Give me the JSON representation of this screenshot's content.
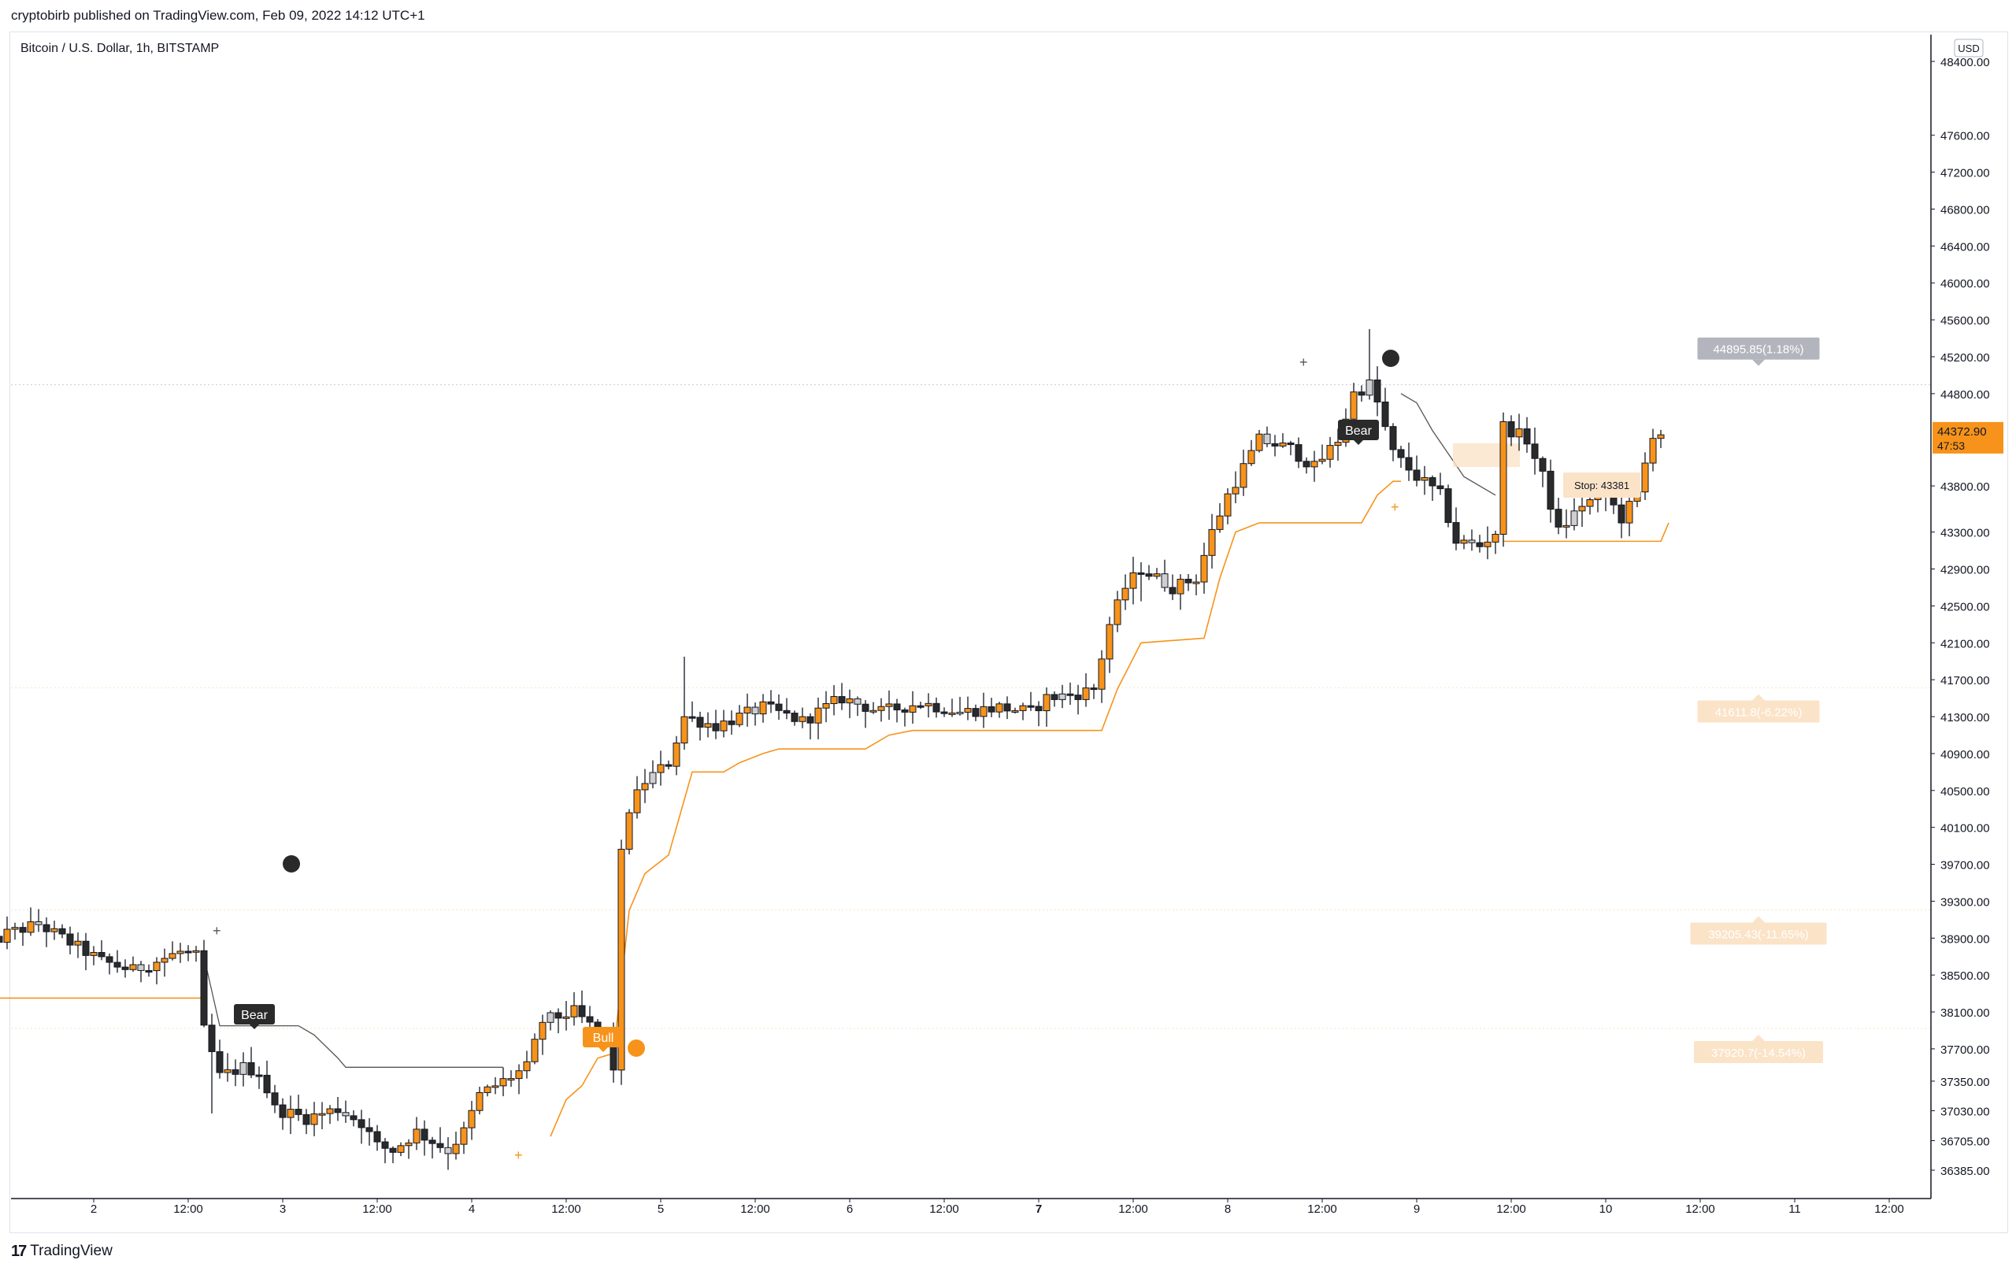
{
  "header": {
    "published": "cryptobirb published on TradingView.com, Feb 09, 2022 14:12 UTC+1"
  },
  "footer": {
    "brand": "TradingView"
  },
  "chart_data": {
    "type": "candlestick",
    "title": "Bitcoin / U.S. Dollar, 1h, BITSTAMP",
    "currency": "USD",
    "colors": {
      "up": "#f7931a",
      "down": "#2a2a2a",
      "neutral": "#cfcfcf",
      "stop_line": "#f7931a",
      "bear_line": "#555555",
      "label_bg": "#fbe3c8",
      "price_badge": "#f7931a",
      "target_gray": "#b2b5be"
    },
    "price_axis": {
      "ticks": [
        "48400.00",
        "47600.00",
        "47200.00",
        "46800.00",
        "46400.00",
        "46000.00",
        "45600.00",
        "45200.00",
        "44800.00",
        "43800.00",
        "43300.00",
        "42900.00",
        "42500.00",
        "42100.00",
        "41700.00",
        "41300.00",
        "40900.00",
        "40500.00",
        "40100.00",
        "39700.00",
        "39300.00",
        "38900.00",
        "38500.00",
        "38100.00",
        "37700.00",
        "37350.00",
        "37030.00",
        "36705.00",
        "36385.00"
      ],
      "ylim": [
        36000,
        48600
      ]
    },
    "time_axis": {
      "ticks": [
        "2",
        "12:00",
        "3",
        "12:00",
        "4",
        "12:00",
        "5",
        "12:00",
        "6",
        "12:00",
        "7",
        "12:00",
        "8",
        "12:00",
        "9",
        "12:00",
        "10",
        "12:00",
        "11",
        "12:00"
      ]
    },
    "current_price": {
      "value": "44372.90",
      "countdown": "47:53"
    },
    "targets": [
      {
        "label": "44895.85(1.18%)",
        "value": 44895.85,
        "style": "gray"
      },
      {
        "label": "41611.8(-6.22%)",
        "value": 41611.8,
        "style": "orange"
      },
      {
        "label": "39205.43(-11.65%)",
        "value": 39205.43,
        "style": "orange"
      },
      {
        "label": "37920.7(-14.54%)",
        "value": 37920.7,
        "style": "orange"
      }
    ],
    "stop_label": "Stop: 43381",
    "signals": [
      {
        "label": "Bear",
        "type": "bear"
      },
      {
        "label": "Bull",
        "type": "bull"
      },
      {
        "label": "Bear",
        "type": "bear"
      }
    ],
    "candles_note": "",
    "anchors": [
      {
        "t": 0,
        "p": 38750
      },
      {
        "t": 4,
        "p": 38950
      },
      {
        "t": 8,
        "p": 39050
      },
      {
        "t": 12,
        "p": 38850
      },
      {
        "t": 16,
        "p": 38650
      },
      {
        "t": 20,
        "p": 38550
      },
      {
        "t": 26,
        "p": 38750
      },
      {
        "t": 28,
        "p": 38700
      },
      {
        "t": 29,
        "p": 37900
      },
      {
        "t": 31,
        "p": 37400
      },
      {
        "t": 34,
        "p": 37500
      },
      {
        "t": 36,
        "p": 37450
      },
      {
        "t": 38,
        "p": 37050
      },
      {
        "t": 42,
        "p": 36950
      },
      {
        "t": 46,
        "p": 37050
      },
      {
        "t": 49,
        "p": 36900
      },
      {
        "t": 51,
        "p": 36650
      },
      {
        "t": 53,
        "p": 36600
      },
      {
        "t": 56,
        "p": 36800
      },
      {
        "t": 58,
        "p": 36700
      },
      {
        "t": 60,
        "p": 36600
      },
      {
        "t": 62,
        "p": 36800
      },
      {
        "t": 64,
        "p": 37200
      },
      {
        "t": 66,
        "p": 37300
      },
      {
        "t": 68,
        "p": 37400
      },
      {
        "t": 70,
        "p": 37500
      },
      {
        "t": 72,
        "p": 38000
      },
      {
        "t": 76,
        "p": 38100
      },
      {
        "t": 80,
        "p": 37800
      },
      {
        "t": 81,
        "p": 37500
      },
      {
        "t": 82,
        "p": 39800
      },
      {
        "t": 83,
        "p": 40300
      },
      {
        "t": 85,
        "p": 40600
      },
      {
        "t": 88,
        "p": 40800
      },
      {
        "t": 90,
        "p": 41300
      },
      {
        "t": 94,
        "p": 41200
      },
      {
        "t": 100,
        "p": 41400
      },
      {
        "t": 105,
        "p": 41250
      },
      {
        "t": 110,
        "p": 41500
      },
      {
        "t": 115,
        "p": 41350
      },
      {
        "t": 120,
        "p": 41450
      },
      {
        "t": 125,
        "p": 41350
      },
      {
        "t": 130,
        "p": 41400
      },
      {
        "t": 134,
        "p": 41350
      },
      {
        "t": 136,
        "p": 41500
      },
      {
        "t": 140,
        "p": 41550
      },
      {
        "t": 142,
        "p": 41600
      },
      {
        "t": 144,
        "p": 42300
      },
      {
        "t": 146,
        "p": 42700
      },
      {
        "t": 148,
        "p": 42900
      },
      {
        "t": 152,
        "p": 42700
      },
      {
        "t": 155,
        "p": 42800
      },
      {
        "t": 157,
        "p": 43300
      },
      {
        "t": 159,
        "p": 43700
      },
      {
        "t": 163,
        "p": 44300
      },
      {
        "t": 167,
        "p": 44200
      },
      {
        "t": 170,
        "p": 44000
      },
      {
        "t": 173,
        "p": 44300
      },
      {
        "t": 175,
        "p": 44800
      },
      {
        "t": 177,
        "p": 44900
      },
      {
        "t": 178,
        "p": 44700
      },
      {
        "t": 180,
        "p": 44150
      },
      {
        "t": 183,
        "p": 43900
      },
      {
        "t": 186,
        "p": 43700
      },
      {
        "t": 188,
        "p": 43200
      },
      {
        "t": 191,
        "p": 43150
      },
      {
        "t": 193,
        "p": 43300
      },
      {
        "t": 194,
        "p": 44450
      },
      {
        "t": 197,
        "p": 44300
      },
      {
        "t": 199,
        "p": 43900
      },
      {
        "t": 201,
        "p": 43300
      },
      {
        "t": 204,
        "p": 43600
      },
      {
        "t": 207,
        "p": 43700
      },
      {
        "t": 209,
        "p": 43450
      },
      {
        "t": 211,
        "p": 43700
      },
      {
        "t": 213,
        "p": 44372.9
      }
    ]
  }
}
